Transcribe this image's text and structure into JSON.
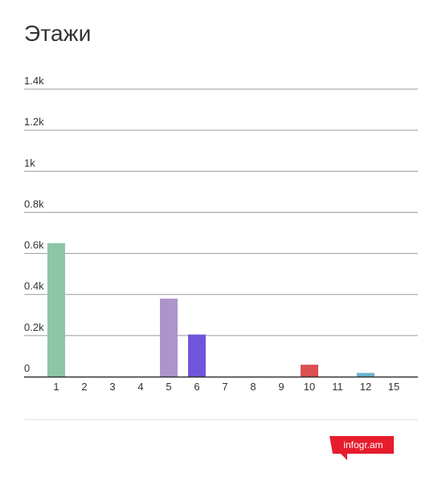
{
  "title": "Этажи",
  "chart_data": {
    "type": "bar",
    "title": "Этажи",
    "xlabel": "",
    "ylabel": "",
    "categories": [
      "1",
      "2",
      "3",
      "4",
      "5",
      "6",
      "7",
      "8",
      "9",
      "10",
      "11",
      "12",
      "15"
    ],
    "values": [
      650,
      0,
      0,
      0,
      380,
      205,
      0,
      0,
      0,
      58,
      0,
      18,
      0
    ],
    "colors": [
      "#8dc5a8",
      "#9aa0ff",
      "#f0a860",
      "#79c0d6",
      "#ae95c9",
      "#6f55dc",
      "#e9b43b",
      "#e08484",
      "#7ac18e",
      "#dc4f52",
      "#9f9f9f",
      "#6cb3d1",
      "#c9c9c9"
    ],
    "ylim": [
      0,
      1400
    ],
    "yticks": [
      0,
      200,
      400,
      600,
      800,
      1000,
      1200,
      1400
    ],
    "ytick_labels": [
      "0",
      "0.2k",
      "0.4k",
      "0.6k",
      "0.8k",
      "1k",
      "1.2k",
      "1.4k"
    ],
    "grid": true,
    "gridline_color": "#9a9a9a",
    "axis_color": "#333333",
    "label_color": "#333333"
  },
  "brand": {
    "label": "infogr.am",
    "color": "#e61c2c"
  }
}
